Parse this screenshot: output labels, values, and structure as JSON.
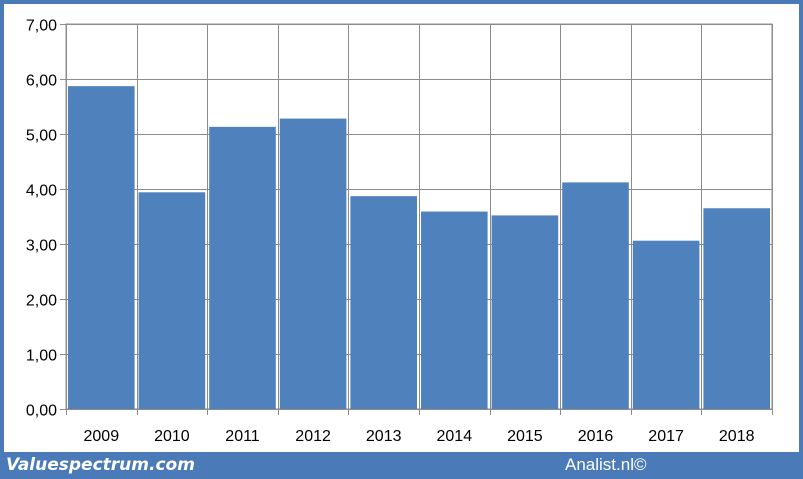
{
  "chart_data": {
    "type": "bar",
    "categories": [
      "2009",
      "2010",
      "2011",
      "2012",
      "2013",
      "2014",
      "2015",
      "2016",
      "2017",
      "2018"
    ],
    "values": [
      5.87,
      3.94,
      5.13,
      5.28,
      3.87,
      3.59,
      3.52,
      4.12,
      3.06,
      3.65
    ],
    "y_ticks": [
      "0,00",
      "1,00",
      "2,00",
      "3,00",
      "4,00",
      "5,00",
      "6,00",
      "7,00"
    ],
    "ylim": [
      0,
      7
    ],
    "grid": true,
    "bar_color": "#4f81bd",
    "grid_color": "#8c8c8c"
  },
  "footer": {
    "brand": "Valuespectrum.com",
    "credit": "Analist.nl©",
    "background": "#4a7ab8"
  }
}
